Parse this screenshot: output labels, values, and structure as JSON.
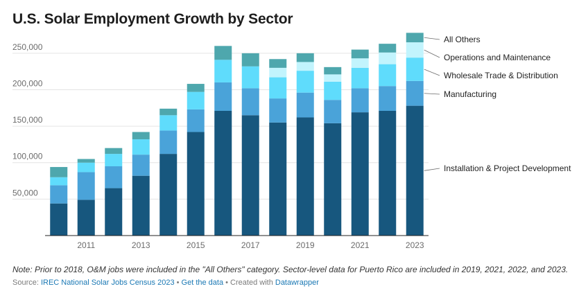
{
  "title": "U.S. Solar Employment Growth by Sector",
  "note": "Note: Prior to 2018, O&M jobs were included in the \"All Others\" category. Sector-level data for Puerto Rico are included in 2019, 2021, 2022, and 2023.",
  "source": {
    "prefix": "Source: ",
    "source_link": "IREC National Solar Jobs Census 2023",
    "sep1": " • ",
    "data_link": "Get the data",
    "sep2": " • Created with ",
    "tool_link": "Datawrapper"
  },
  "colors": {
    "installation": "#17577e",
    "manufacturing": "#4aa3d9",
    "wholesale": "#5fdcfc",
    "om": "#c2f4fd",
    "others": "#4ea7ad",
    "grid": "#e4e4e4",
    "axis": "#222222"
  },
  "chart_data": {
    "type": "bar",
    "stacked": true,
    "title": "U.S. Solar Employment Growth by Sector",
    "xlabel": "",
    "ylabel": "",
    "ylim": [
      0,
      285000
    ],
    "yticks": [
      50000,
      100000,
      150000,
      200000,
      250000
    ],
    "ytick_labels": [
      "50,000",
      "100,000",
      "150,000",
      "200,000",
      "250,000"
    ],
    "xtick_labels": [
      "2011",
      "2013",
      "2015",
      "2017",
      "2019",
      "2021",
      "2023"
    ],
    "grid": true,
    "legend": "right, labels at end of last bar",
    "categories": [
      "2010",
      "2011",
      "2012",
      "2013",
      "2014",
      "2015",
      "2016",
      "2017",
      "2018",
      "2019",
      "2020",
      "2021",
      "2022",
      "2023"
    ],
    "series": [
      {
        "name": "Installation & Project Development",
        "color_key": "installation",
        "values": [
          44000,
          49000,
          65000,
          82000,
          112000,
          142000,
          171000,
          165000,
          155000,
          162000,
          154000,
          169000,
          171000,
          178000
        ]
      },
      {
        "name": "Manufacturing",
        "color_key": "manufacturing",
        "values": [
          25000,
          38000,
          30000,
          29000,
          32000,
          31000,
          39000,
          37000,
          33000,
          34000,
          32000,
          33000,
          34000,
          34000
        ]
      },
      {
        "name": "Wholesale Trade & Distribution",
        "color_key": "wholesale",
        "values": [
          11000,
          13000,
          17000,
          21000,
          21000,
          24000,
          31000,
          30000,
          29000,
          30000,
          25000,
          28000,
          30000,
          32000
        ]
      },
      {
        "name": "Operations and Maintenance",
        "color_key": "om",
        "values": [
          0,
          0,
          0,
          0,
          0,
          0,
          0,
          0,
          13000,
          12000,
          10000,
          13000,
          16000,
          21000
        ]
      },
      {
        "name": "All Others",
        "color_key": "others",
        "values": [
          14000,
          5000,
          8000,
          10000,
          9000,
          11000,
          19000,
          18000,
          12000,
          12000,
          10000,
          12000,
          12000,
          13000
        ]
      }
    ]
  }
}
